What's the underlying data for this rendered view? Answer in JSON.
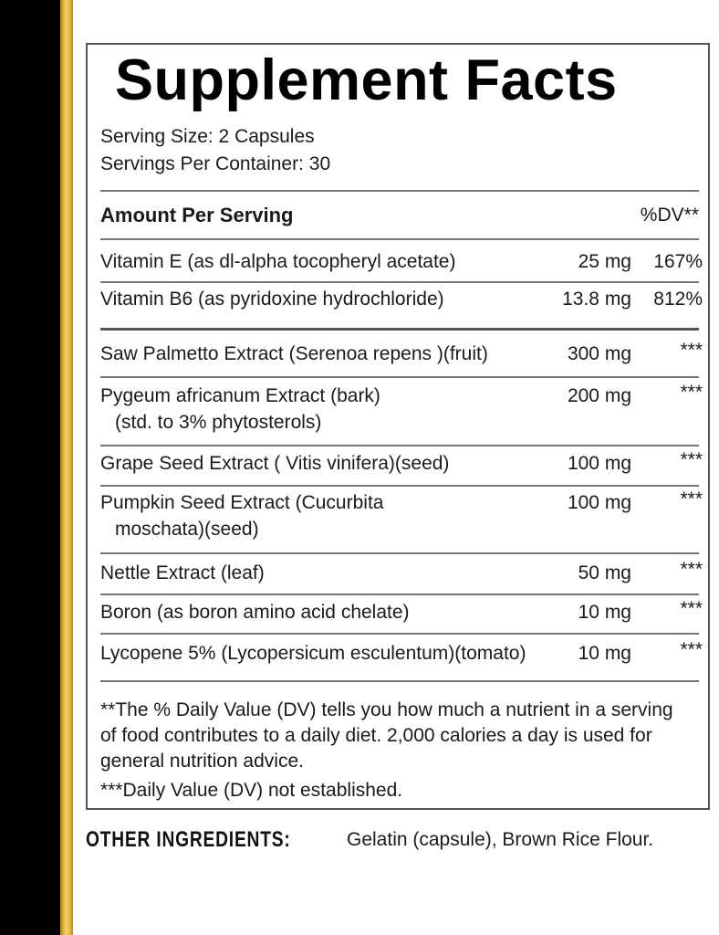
{
  "label": {
    "title": "Supplement Facts",
    "serving_size": "Serving Size:   2 Capsules",
    "servings_per_container": "Servings Per Container:  30",
    "amount_header": "Amount Per Serving",
    "dv_header": "%DV**",
    "nutrients": [
      {
        "name": "Vitamin E (as dl-alpha tocopheryl acetate)",
        "amount": "25 mg",
        "dv": "167%"
      },
      {
        "name": "Vitamin B6 (as pyridoxine hydrochloride)",
        "amount": "13.8 mg",
        "dv": "812%"
      },
      {
        "name": "Saw Palmetto Extract (Serenoa repens )(fruit)",
        "amount": "300 mg",
        "dv": "***"
      },
      {
        "name": "Pygeum africanum  Extract (bark)",
        "sub": "(std. to 3% phytosterols)",
        "amount": "200 mg",
        "dv": "***"
      },
      {
        "name": "Grape Seed Extract ( Vitis vinifera)(seed)",
        "amount": "100 mg",
        "dv": "***"
      },
      {
        "name": "Pumpkin Seed Extract (Cucurbita",
        "sub": "moschata)(seed)",
        "amount": "100 mg",
        "dv": "***"
      },
      {
        "name": "Nettle Extract (leaf)",
        "amount": "50 mg",
        "dv": "***"
      },
      {
        "name": "Boron (as boron amino acid chelate)",
        "amount": "10 mg",
        "dv": "***"
      },
      {
        "name": "Lycopene 5% (Lycopersicum esculentum)(tomato)",
        "amount": "10 mg",
        "dv": "***"
      }
    ],
    "footnotes": [
      "**The % Daily Value (DV) tells you how much a nutrient in a serving",
      "of food contributes to a daily diet. 2,000 calories a day is used for",
      "general nutrition advice.",
      "***Daily Value (DV) not established."
    ]
  },
  "other_ingredients": {
    "label": "OTHER INGREDIENTS:",
    "value": "Gelatin (capsule), Brown Rice Flour."
  },
  "colors": {
    "gold": "#e8c04a",
    "black": "#000000"
  }
}
